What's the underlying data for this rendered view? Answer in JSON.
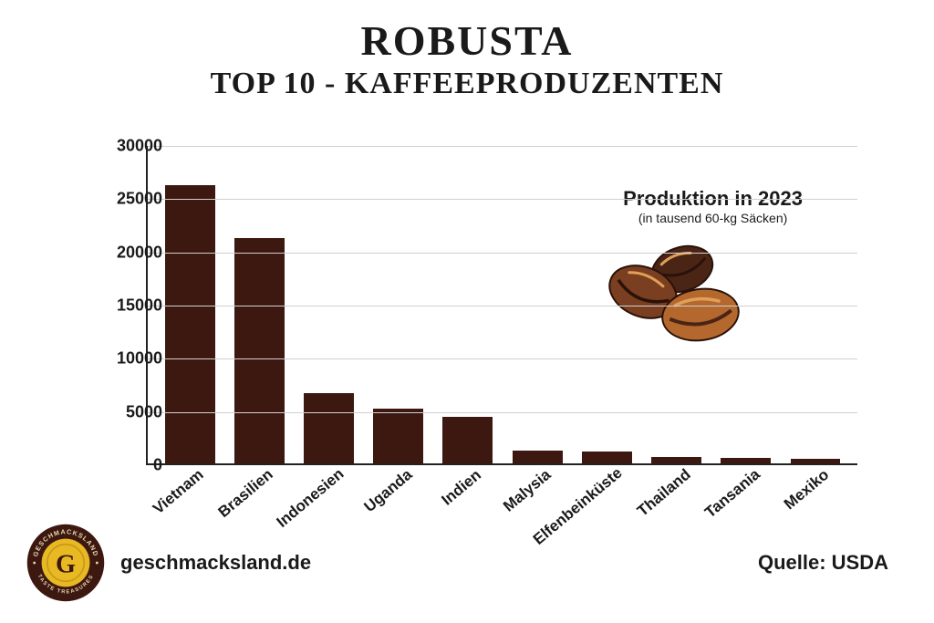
{
  "title": "ROBUSTA",
  "subtitle": "TOP 10 - KAFFEEPRODUZENTEN",
  "chart": {
    "type": "bar",
    "categories": [
      "Vietnam",
      "Brasilien",
      "Indonesien",
      "Uganda",
      "Indien",
      "Malysia",
      "Elfenbeinküste",
      "Thailand",
      "Tansania",
      "Mexiko"
    ],
    "values": [
      26300,
      21300,
      6600,
      5200,
      4400,
      1200,
      1150,
      600,
      550,
      450
    ],
    "bar_color": "#3d1810",
    "ylim": [
      0,
      30000
    ],
    "ytick_step": 5000,
    "yticks": [
      0,
      5000,
      10000,
      15000,
      20000,
      25000,
      30000
    ],
    "grid_color": "#d0d0d0",
    "axis_color": "#222222",
    "background_color": "#ffffff",
    "tick_fontsize": 18,
    "label_fontsize": 17,
    "label_rotation_deg": -40,
    "bar_width_ratio": 0.72
  },
  "annotation": {
    "line1": "Produktion in 2023",
    "line2": "(in tausend 60-kg Säcken)"
  },
  "footer": {
    "website": "geschmacksland.de",
    "source_label": "Quelle: USDA"
  },
  "logo": {
    "outer_color": "#3d1810",
    "inner_color": "#e8b923",
    "letter": "G",
    "top_text": "GESCHMACKSLAND",
    "bottom_text": "TASTE TREASURES"
  },
  "beans_color": {
    "dark": "#4a2515",
    "mid": "#7a3e20",
    "light": "#b5682e",
    "hi": "#e0a05a"
  }
}
